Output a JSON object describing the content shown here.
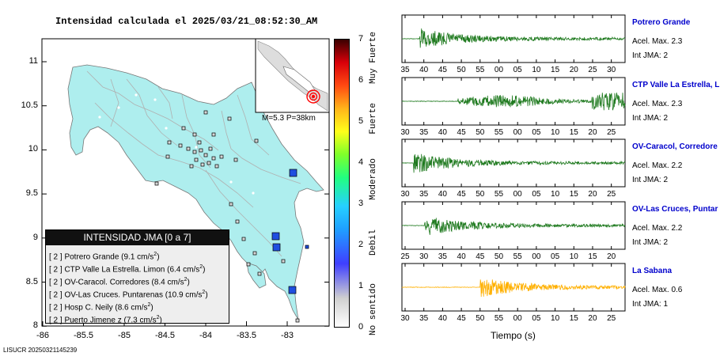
{
  "title": "Intensidad calculada el 2025/03/21_08:52:30_AM",
  "footer": "LISUCR 20250321145239",
  "inset_label": "M=5.3 P=38km",
  "map_axes": {
    "y_ticks": [
      "11",
      "10.5",
      "10",
      "9.5",
      "9",
      "8.5",
      "8"
    ],
    "x_ticks": [
      "-86",
      "-85.5",
      "-85",
      "-84.5",
      "-84",
      "-83.5",
      "-83"
    ]
  },
  "colors": {
    "land": "#aeeeee",
    "station_box": "#d8d8d8",
    "station_blue": "#1f4fe0",
    "trace_green": "#1f7a1f",
    "trace_orange": "#ffb000",
    "name_blue": "#0000cc"
  },
  "legend": {
    "title": "INTENSIDAD JMA [0 a 7]",
    "rows": [
      {
        "level": "[ 2 ]",
        "text": "Potrero Grande (9.1 cm/s",
        "sup": "2",
        "close": ")"
      },
      {
        "level": "[ 2 ]",
        "text": "CTP Valle La Estrella. Limon (6.4 cm/s",
        "sup": "2",
        "close": ")"
      },
      {
        "level": "[ 2 ]",
        "text": "OV-Caracol. Corredores (8.4 cm/s",
        "sup": "2",
        "close": ")"
      },
      {
        "level": "[ 2 ]",
        "text": "OV-Las Cruces. Puntarenas (10.9 cm/s",
        "sup": "2",
        "close": ")"
      },
      {
        "level": "[ 2 ]",
        "text": "Hosp C. Neily (8.6 cm/s",
        "sup": "2",
        "close": ")"
      },
      {
        "level": "[ 2 ]",
        "text": "Puerto Jimene z (7.3 cm/s",
        "sup": "2",
        "close": ")"
      }
    ]
  },
  "colorbar": {
    "ticks": [
      "7",
      "6",
      "5",
      "4",
      "3",
      "2",
      "1",
      "0"
    ],
    "words": [
      "Muy Fuerte",
      "Fuerte",
      "Moderado",
      "Debil",
      "No sentido"
    ]
  },
  "waveforms": [
    {
      "name": "Potrero Grande",
      "acel": "Acel. Max. 2.3",
      "int": "Int JMA: 2",
      "ticks": [
        "35",
        "40",
        "45",
        "50",
        "55",
        "00",
        "05",
        "10",
        "15",
        "20",
        "25",
        "30"
      ],
      "color": "#1f7a1f"
    },
    {
      "name": "CTP Valle La Estrella, L",
      "acel": "Acel. Max. 2.3",
      "int": "Int JMA: 2",
      "ticks": [
        "30",
        "35",
        "40",
        "45",
        "50",
        "55",
        "00",
        "05",
        "10",
        "15",
        "20",
        "25"
      ],
      "color": "#1f7a1f"
    },
    {
      "name": "OV-Caracol, Corredore",
      "acel": "Acel. Max. 2.2",
      "int": "Int JMA: 2",
      "ticks": [
        "30",
        "35",
        "40",
        "45",
        "50",
        "55",
        "00",
        "05",
        "10",
        "15",
        "20",
        "25"
      ],
      "color": "#1f7a1f"
    },
    {
      "name": "OV-Las Cruces, Puntar",
      "acel": "Acel. Max. 2.2",
      "int": "Int JMA: 2",
      "ticks": [
        "25",
        "30",
        "35",
        "40",
        "45",
        "50",
        "55",
        "00",
        "05",
        "10",
        "15",
        "20"
      ],
      "color": "#1f7a1f"
    },
    {
      "name": "La Sabana",
      "acel": "Acel. Max. 0.6",
      "int": "Int JMA: 1",
      "ticks": [
        "30",
        "35",
        "40",
        "45",
        "50",
        "55",
        "00",
        "05",
        "10",
        "15",
        "20",
        "25"
      ],
      "color": "#ffb000"
    }
  ],
  "wave_xlabel": "Tiempo (s)"
}
